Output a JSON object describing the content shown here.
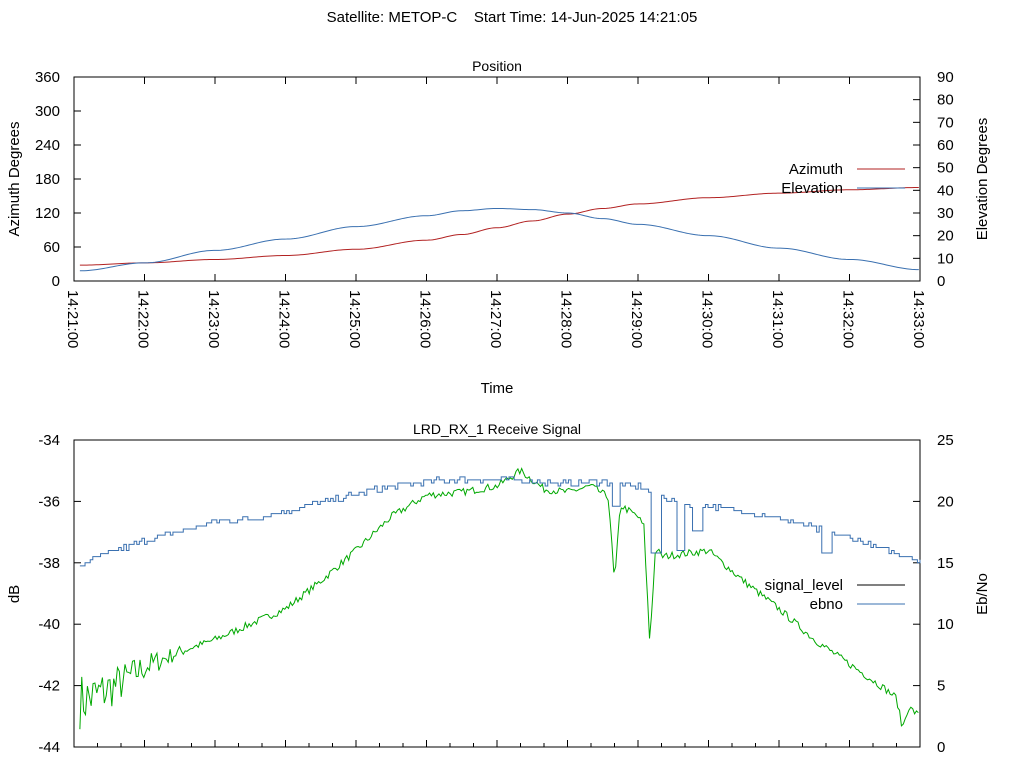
{
  "page_title": "Satellite: METOP-C    Start Time: 14-Jun-2025 14:21:05",
  "chart_data": [
    {
      "type": "line",
      "title": "Position",
      "xlabel": "Time",
      "ylabel": "Azimuth Degrees",
      "y2label": "Elevation Degrees",
      "xlim": [
        "14:21:00",
        "14:33:00"
      ],
      "ylim": [
        0,
        360
      ],
      "y2lim": [
        0,
        90
      ],
      "xticks": [
        "14:21:00",
        "14:22:00",
        "14:23:00",
        "14:24:00",
        "14:25:00",
        "14:26:00",
        "14:27:00",
        "14:28:00",
        "14:29:00",
        "14:30:00",
        "14:31:00",
        "14:32:00",
        "14:33:00"
      ],
      "yticks": [
        "0",
        "60",
        "120",
        "180",
        "240",
        "300",
        "360"
      ],
      "y2ticks": [
        "0",
        "10",
        "20",
        "30",
        "40",
        "50",
        "60",
        "70",
        "80",
        "90"
      ],
      "grid": false,
      "legend_position": "right",
      "series": [
        {
          "name": "Azimuth",
          "axis": "y",
          "color": "#b22222",
          "x": [
            "14:21:05",
            "14:22:00",
            "14:23:00",
            "14:24:00",
            "14:25:00",
            "14:26:00",
            "14:26:30",
            "14:27:00",
            "14:27:30",
            "14:28:00",
            "14:28:30",
            "14:29:00",
            "14:30:00",
            "14:31:00",
            "14:32:00",
            "14:33:00"
          ],
          "y": [
            28,
            32,
            38,
            45,
            56,
            72,
            82,
            94,
            106,
            118,
            128,
            136,
            147,
            155,
            161,
            165
          ]
        },
        {
          "name": "Elevation",
          "axis": "y2",
          "color": "#3a70b0",
          "x": [
            "14:21:05",
            "14:22:00",
            "14:23:00",
            "14:24:00",
            "14:25:00",
            "14:26:00",
            "14:26:30",
            "14:27:00",
            "14:27:30",
            "14:28:00",
            "14:28:30",
            "14:29:00",
            "14:30:00",
            "14:31:00",
            "14:32:00",
            "14:33:00"
          ],
          "y": [
            4.5,
            8,
            13.5,
            18.5,
            24,
            28.8,
            31,
            32,
            31.5,
            30,
            27.5,
            25,
            20,
            14.5,
            9.5,
            5
          ]
        }
      ]
    },
    {
      "type": "line",
      "title": "LRD_RX_1 Receive Signal",
      "xlabel": "",
      "ylabel": "dB",
      "y2label": "Eb/No",
      "xlim": [
        "14:21:00",
        "14:33:00"
      ],
      "ylim": [
        -44,
        -34
      ],
      "y2lim": [
        0,
        25
      ],
      "yticks": [
        "-44",
        "-42",
        "-40",
        "-38",
        "-36",
        "-34"
      ],
      "y2ticks": [
        "0",
        "5",
        "10",
        "15",
        "20",
        "25"
      ],
      "x_minor_ticks_per_minute": 3,
      "grid": false,
      "legend_position": "right",
      "legend": [
        {
          "name": "signal_level",
          "color": "#000000"
        },
        {
          "name": "ebno",
          "color": "#3a70b0"
        }
      ],
      "series": [
        {
          "name": "signal_level trace",
          "axis": "y",
          "color": "#00a800",
          "noise_db": 0.12,
          "x": [
            "14:21:05",
            "14:21:20",
            "14:21:40",
            "14:22:00",
            "14:22:30",
            "14:23:00",
            "14:23:30",
            "14:24:00",
            "14:24:30",
            "14:25:00",
            "14:25:30",
            "14:26:00",
            "14:26:30",
            "14:27:00",
            "14:27:20",
            "14:27:40",
            "14:28:00",
            "14:28:20",
            "14:28:40",
            "14:29:00",
            "14:29:20",
            "14:29:40",
            "14:30:00",
            "14:30:30",
            "14:31:00",
            "14:31:30",
            "14:32:00",
            "14:32:30",
            "14:33:00"
          ],
          "y": [
            -42.5,
            -42.3,
            -41.9,
            -41.4,
            -40.9,
            -40.5,
            -40.0,
            -39.5,
            -38.6,
            -37.6,
            -36.5,
            -35.8,
            -35.7,
            -35.5,
            -35.0,
            -35.6,
            -35.7,
            -35.5,
            -36.0,
            -36.5,
            -37.8,
            -37.7,
            -37.6,
            -38.6,
            -39.5,
            -40.5,
            -41.3,
            -42.1,
            -43.0
          ],
          "spikes": [
            {
              "x": "14:28:40",
              "y": -38.7
            },
            {
              "x": "14:29:10",
              "y": -40.6
            },
            {
              "x": "14:32:45",
              "y": -43.4
            }
          ],
          "early_noise_db": 0.8
        },
        {
          "name": "ebno trace",
          "axis": "y2",
          "color": "#3a70b0",
          "noise_db": 0.25,
          "x": [
            "14:21:05",
            "14:21:30",
            "14:22:00",
            "14:22:30",
            "14:23:00",
            "14:23:30",
            "14:24:00",
            "14:24:30",
            "14:25:00",
            "14:25:30",
            "14:26:00",
            "14:26:30",
            "14:27:00",
            "14:27:30",
            "14:28:00",
            "14:28:30",
            "14:29:00",
            "14:29:20",
            "14:29:30",
            "14:30:00",
            "14:30:30",
            "14:31:00",
            "14:31:30",
            "14:32:00",
            "14:32:30",
            "14:33:00"
          ],
          "y": [
            14.8,
            15.8,
            16.8,
            17.5,
            18.4,
            18.6,
            19.2,
            19.9,
            20.6,
            21.2,
            21.6,
            21.8,
            21.8,
            21.6,
            21.4,
            21.6,
            21.2,
            20.5,
            20.0,
            19.6,
            19.2,
            18.6,
            17.8,
            17.0,
            16.0,
            15.3
          ],
          "dips": [
            {
              "x": "14:28:40",
              "y": 19.6
            },
            {
              "x": "14:29:15",
              "y": 15.8
            },
            {
              "x": "14:29:35",
              "y": 16.0
            },
            {
              "x": "14:29:50",
              "y": 17.6
            },
            {
              "x": "14:31:40",
              "y": 15.8
            }
          ]
        }
      ]
    }
  ]
}
